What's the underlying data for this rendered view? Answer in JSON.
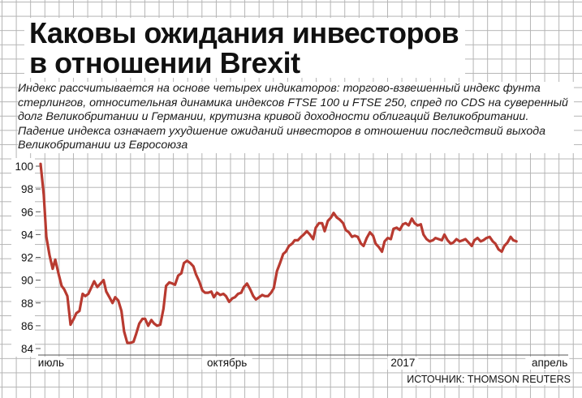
{
  "title_line1": "Каковы ожидания инвесторов",
  "title_line2": "в отношении Brexit",
  "subtitle": "Индекс рассчитывается на основе четырех индикаторов: торгово-взвешенный индекс фунта стерлингов, относительная динамика индексов FTSE 100 и FTSE 250, спред по CDS на суверенный долг Великобритании и Германии, крутизна кривой доходности облигаций Великобритании. Падение индекса означает ухудшение ожиданий инвесторов в отношении последствий выхода Великобритании из Евросоюза",
  "source": "ИСТОЧНИК: THOMSON REUTERS",
  "colors": {
    "line": "#b83a30",
    "axis": "#555555",
    "grid": "#b4b4b4",
    "text": "#111111"
  },
  "chart_data": {
    "type": "line",
    "grid": true,
    "ylim": [
      84,
      100
    ],
    "yticks": [
      100,
      98,
      96,
      94,
      92,
      90,
      88,
      86,
      84
    ],
    "xticks": [
      {
        "t": 0.02,
        "label": "июль"
      },
      {
        "t": 0.355,
        "label": "октябрь"
      },
      {
        "t": 0.69,
        "label": "2017"
      },
      {
        "t": 0.985,
        "label": "апрель"
      }
    ],
    "series": [
      {
        "points": [
          [
            0.0,
            100.2
          ],
          [
            0.006,
            97.5
          ],
          [
            0.011,
            93.8
          ],
          [
            0.017,
            92.2
          ],
          [
            0.023,
            91.0
          ],
          [
            0.028,
            91.8
          ],
          [
            0.034,
            90.6
          ],
          [
            0.04,
            89.5
          ],
          [
            0.045,
            89.2
          ],
          [
            0.051,
            88.6
          ],
          [
            0.057,
            86.1
          ],
          [
            0.063,
            86.6
          ],
          [
            0.068,
            87.1
          ],
          [
            0.074,
            87.3
          ],
          [
            0.08,
            88.8
          ],
          [
            0.085,
            88.6
          ],
          [
            0.091,
            88.8
          ],
          [
            0.097,
            89.4
          ],
          [
            0.102,
            89.9
          ],
          [
            0.108,
            89.4
          ],
          [
            0.114,
            89.7
          ],
          [
            0.12,
            90.0
          ],
          [
            0.125,
            89.0
          ],
          [
            0.131,
            88.5
          ],
          [
            0.137,
            88.0
          ],
          [
            0.142,
            88.5
          ],
          [
            0.148,
            88.2
          ],
          [
            0.154,
            87.3
          ],
          [
            0.159,
            85.5
          ],
          [
            0.165,
            84.5
          ],
          [
            0.171,
            84.5
          ],
          [
            0.177,
            84.6
          ],
          [
            0.182,
            85.3
          ],
          [
            0.188,
            86.2
          ],
          [
            0.194,
            86.6
          ],
          [
            0.199,
            86.6
          ],
          [
            0.205,
            86.0
          ],
          [
            0.211,
            86.5
          ],
          [
            0.216,
            86.2
          ],
          [
            0.222,
            86.0
          ],
          [
            0.228,
            86.1
          ],
          [
            0.234,
            87.5
          ],
          [
            0.239,
            89.5
          ],
          [
            0.245,
            89.8
          ],
          [
            0.251,
            89.7
          ],
          [
            0.256,
            89.6
          ],
          [
            0.262,
            90.4
          ],
          [
            0.268,
            90.6
          ],
          [
            0.273,
            91.5
          ],
          [
            0.279,
            91.7
          ],
          [
            0.285,
            91.5
          ],
          [
            0.291,
            91.2
          ],
          [
            0.296,
            90.5
          ],
          [
            0.302,
            89.9
          ],
          [
            0.308,
            89.1
          ],
          [
            0.313,
            88.9
          ],
          [
            0.319,
            88.9
          ],
          [
            0.325,
            89.0
          ],
          [
            0.33,
            88.5
          ],
          [
            0.336,
            88.9
          ],
          [
            0.342,
            88.7
          ],
          [
            0.348,
            88.8
          ],
          [
            0.353,
            88.6
          ],
          [
            0.359,
            88.1
          ],
          [
            0.365,
            88.4
          ],
          [
            0.37,
            88.5
          ],
          [
            0.376,
            88.8
          ],
          [
            0.382,
            88.9
          ],
          [
            0.387,
            89.4
          ],
          [
            0.393,
            89.7
          ],
          [
            0.399,
            89.2
          ],
          [
            0.405,
            88.6
          ],
          [
            0.41,
            88.3
          ],
          [
            0.416,
            88.5
          ],
          [
            0.422,
            88.7
          ],
          [
            0.427,
            88.6
          ],
          [
            0.433,
            88.6
          ],
          [
            0.439,
            88.9
          ],
          [
            0.444,
            89.3
          ],
          [
            0.45,
            90.8
          ],
          [
            0.456,
            91.5
          ],
          [
            0.462,
            92.3
          ],
          [
            0.467,
            92.5
          ],
          [
            0.473,
            93.0
          ],
          [
            0.479,
            93.2
          ],
          [
            0.484,
            93.5
          ],
          [
            0.49,
            93.5
          ],
          [
            0.496,
            93.8
          ],
          [
            0.501,
            94.0
          ],
          [
            0.507,
            94.3
          ],
          [
            0.513,
            94.0
          ],
          [
            0.519,
            93.6
          ],
          [
            0.524,
            94.6
          ],
          [
            0.53,
            95.0
          ],
          [
            0.536,
            95.0
          ],
          [
            0.541,
            94.3
          ],
          [
            0.547,
            95.2
          ],
          [
            0.553,
            95.5
          ],
          [
            0.558,
            95.9
          ],
          [
            0.564,
            95.5
          ],
          [
            0.57,
            95.3
          ],
          [
            0.576,
            95.0
          ],
          [
            0.581,
            94.4
          ],
          [
            0.587,
            94.2
          ],
          [
            0.593,
            93.8
          ],
          [
            0.598,
            93.9
          ],
          [
            0.604,
            93.8
          ],
          [
            0.61,
            93.2
          ],
          [
            0.615,
            93.0
          ],
          [
            0.621,
            93.7
          ],
          [
            0.627,
            94.2
          ],
          [
            0.633,
            93.9
          ],
          [
            0.638,
            93.2
          ],
          [
            0.644,
            92.9
          ],
          [
            0.65,
            92.5
          ],
          [
            0.655,
            93.4
          ],
          [
            0.661,
            93.7
          ],
          [
            0.667,
            93.6
          ],
          [
            0.672,
            94.5
          ],
          [
            0.678,
            94.6
          ],
          [
            0.684,
            94.4
          ],
          [
            0.69,
            94.9
          ],
          [
            0.695,
            95.0
          ],
          [
            0.701,
            94.8
          ],
          [
            0.707,
            95.4
          ],
          [
            0.712,
            95.0
          ],
          [
            0.718,
            94.8
          ],
          [
            0.724,
            94.9
          ],
          [
            0.729,
            94.0
          ],
          [
            0.735,
            93.6
          ],
          [
            0.741,
            93.4
          ],
          [
            0.747,
            93.5
          ],
          [
            0.752,
            93.7
          ],
          [
            0.758,
            93.6
          ],
          [
            0.764,
            93.5
          ],
          [
            0.769,
            94.0
          ],
          [
            0.775,
            93.5
          ],
          [
            0.781,
            93.2
          ],
          [
            0.786,
            93.3
          ],
          [
            0.792,
            93.6
          ],
          [
            0.798,
            93.4
          ],
          [
            0.804,
            93.5
          ],
          [
            0.809,
            93.6
          ],
          [
            0.815,
            93.3
          ],
          [
            0.821,
            93.0
          ],
          [
            0.826,
            93.5
          ],
          [
            0.832,
            93.7
          ],
          [
            0.838,
            93.4
          ],
          [
            0.843,
            93.5
          ],
          [
            0.849,
            93.7
          ],
          [
            0.855,
            93.8
          ],
          [
            0.861,
            93.4
          ],
          [
            0.866,
            93.2
          ],
          [
            0.872,
            92.7
          ],
          [
            0.878,
            92.5
          ],
          [
            0.883,
            93.0
          ],
          [
            0.889,
            93.3
          ],
          [
            0.895,
            93.8
          ],
          [
            0.9,
            93.5
          ],
          [
            0.906,
            93.4
          ]
        ]
      }
    ]
  }
}
